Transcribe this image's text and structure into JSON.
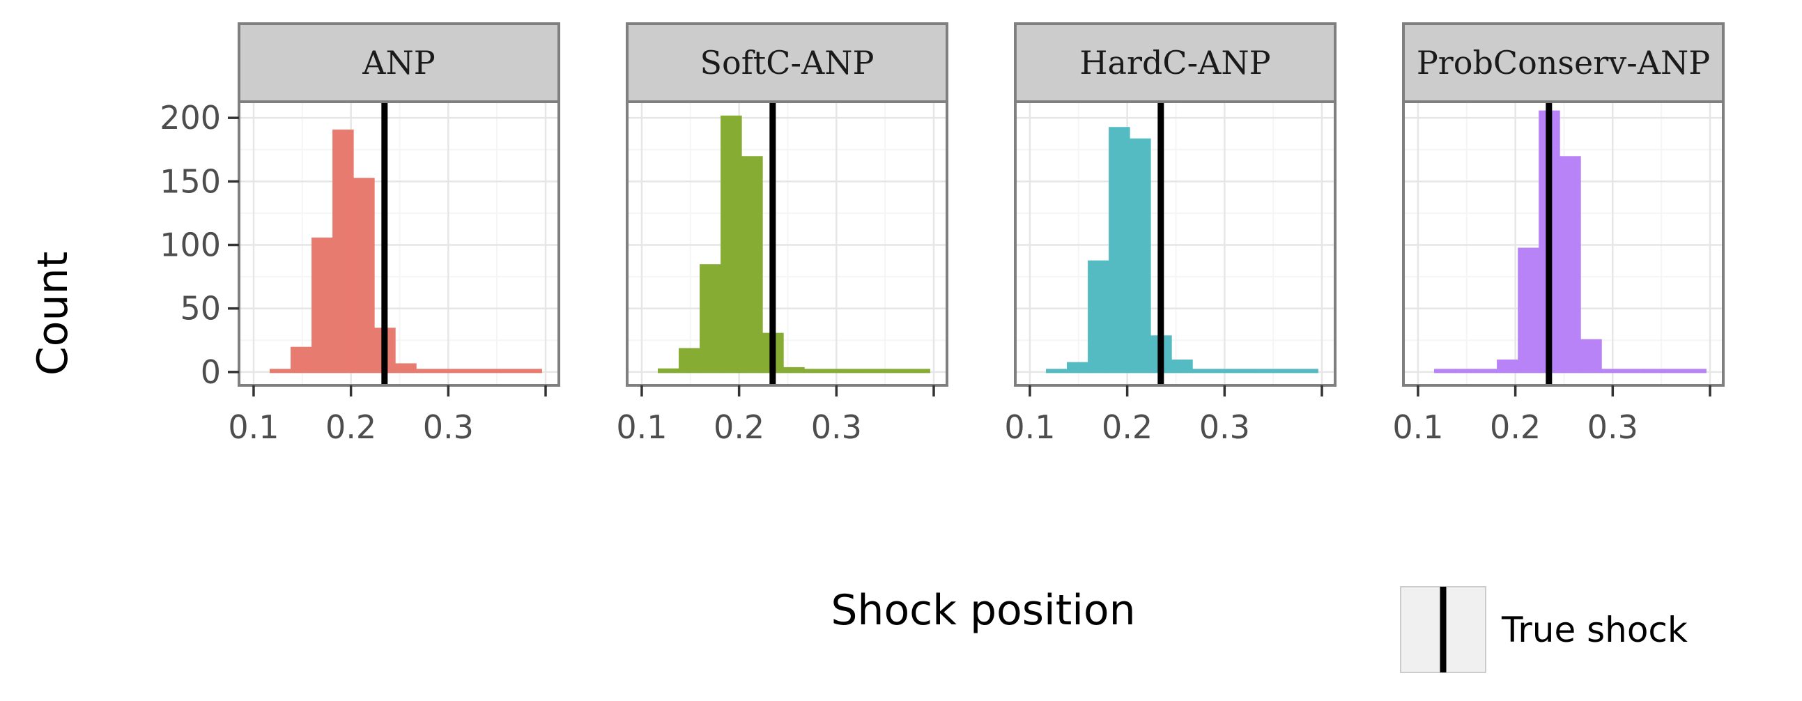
{
  "chart_data": {
    "type": "bar",
    "subtype": "faceted-histogram",
    "xlabel": "Shock position",
    "ylabel": "Count",
    "xlim": [
      0.085,
      0.4136
    ],
    "ylim": [
      -10.5,
      212.7
    ],
    "xticks": [
      0.1,
      0.2,
      0.3,
      0.4
    ],
    "xtick_labels": [
      "0.1",
      "0.2",
      "0.3",
      ""
    ],
    "yticks": [
      0,
      50,
      100,
      150,
      200
    ],
    "ytick_labels": [
      "0",
      "50",
      "100",
      "150",
      "200"
    ],
    "grid": true,
    "bin_start": 0.1165,
    "bin_width": 0.0215,
    "true_shock": 0.2345,
    "facets": [
      {
        "name": "ANP",
        "color": "#E87B70",
        "counts": [
          0,
          19,
          105,
          190,
          152,
          34,
          6,
          0,
          0,
          0,
          0,
          0,
          0
        ]
      },
      {
        "name": "SoftC-ANP",
        "color": "#86AC34",
        "counts": [
          2,
          18,
          84,
          201,
          169,
          30,
          3,
          0,
          0,
          0,
          0,
          0,
          0
        ]
      },
      {
        "name": "HardC-ANP",
        "color": "#55BBC2",
        "counts": [
          0,
          7,
          87,
          192,
          183,
          28,
          9,
          0,
          0,
          0,
          0,
          0,
          0
        ]
      },
      {
        "name": "ProbConserv-ANP",
        "color": "#B883F6",
        "counts": [
          0,
          0,
          0,
          9,
          97,
          205,
          169,
          25,
          0,
          0,
          0,
          0,
          0
        ]
      }
    ],
    "legend": {
      "label": "True shock",
      "placement": "bottom-right"
    }
  }
}
